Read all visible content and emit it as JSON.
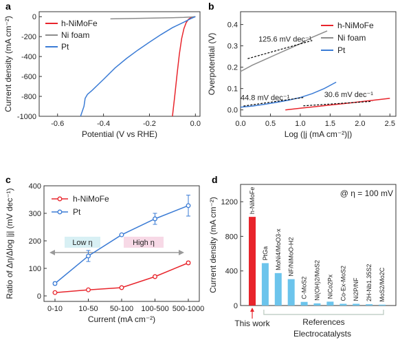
{
  "colors": {
    "red": "#e8242b",
    "gray": "#8c8c8c",
    "blue": "#3a7bd5",
    "lightblue": "#6cc4ec",
    "refgray": "#9aa7a0",
    "refline": "#b8c8bd",
    "lowbox": "#d8f0f4",
    "highbox": "#f7d9e6"
  },
  "chart_data": [
    {
      "panel": "a",
      "type": "line",
      "xlabel": "Potential (V vs RHE)",
      "ylabel": "Current density (mA cm⁻²)",
      "xlim": [
        -0.68,
        0.02
      ],
      "ylim": [
        -1000,
        50
      ],
      "xticks": [
        "-0.6",
        "-0.4",
        "-0.2",
        "0.0"
      ],
      "yticks": [
        "0",
        "-200",
        "-400",
        "-600",
        "-800",
        "-1000"
      ],
      "legend_position": "top-left",
      "series": [
        {
          "name": "h-NiMoFe",
          "color": "red",
          "x": [
            0.0,
            -0.01,
            -0.02,
            -0.03,
            -0.04,
            -0.05,
            -0.06,
            -0.07,
            -0.08,
            -0.09,
            -0.1
          ],
          "y": [
            0,
            -3,
            -10,
            -25,
            -60,
            -120,
            -220,
            -380,
            -580,
            -800,
            -1000
          ]
        },
        {
          "name": "Ni foam",
          "color": "gray",
          "x": [
            -0.37,
            -0.3,
            -0.2,
            -0.1,
            -0.05,
            -0.02,
            0.0
          ],
          "y": [
            -22,
            -19,
            -15,
            -10,
            -7,
            -4,
            0
          ]
        },
        {
          "name": "Pt",
          "color": "blue",
          "x": [
            0.0,
            -0.02,
            -0.05,
            -0.1,
            -0.15,
            -0.2,
            -0.25,
            -0.3,
            -0.35,
            -0.4,
            -0.45,
            -0.47,
            -0.48,
            -0.485,
            -0.5
          ],
          "y": [
            0,
            -20,
            -55,
            -110,
            -180,
            -255,
            -335,
            -420,
            -515,
            -630,
            -740,
            -780,
            -820,
            -900,
            -1000
          ]
        }
      ]
    },
    {
      "panel": "b",
      "type": "line",
      "xlabel": "Log (|j (mA cm⁻²)|)",
      "ylabel": "Overpotential (V)",
      "xlim": [
        0.0,
        2.6
      ],
      "ylim": [
        -0.03,
        0.46
      ],
      "xticks": [
        "0.0",
        "0.5",
        "1.0",
        "1.5",
        "2.0",
        "2.5"
      ],
      "yticks": [
        "0.0",
        "0.1",
        "0.2",
        "0.3",
        "0.4"
      ],
      "legend_position": "top-right",
      "annotations": [
        "125.6 mV dec⁻¹",
        "44.8 mV dec⁻¹",
        "30.6 mV dec⁻¹"
      ],
      "series": [
        {
          "name": "h-NiMoFe",
          "color": "red",
          "x": [
            0.75,
            1.0,
            1.25,
            1.5,
            1.75,
            2.0,
            2.25,
            2.5
          ],
          "y": [
            0.0,
            0.008,
            0.015,
            0.023,
            0.03,
            0.038,
            0.046,
            0.054
          ]
        },
        {
          "name": "Ni foam",
          "color": "gray",
          "x": [
            0.0,
            0.2,
            0.4,
            0.6,
            0.8,
            1.0,
            1.2,
            1.45
          ],
          "y": [
            0.18,
            0.21,
            0.235,
            0.26,
            0.285,
            0.31,
            0.34,
            0.37
          ]
        },
        {
          "name": "Pt",
          "color": "blue",
          "x": [
            0.0,
            0.2,
            0.4,
            0.6,
            0.8,
            1.0,
            1.2,
            1.4,
            1.6
          ],
          "y": [
            0.013,
            0.018,
            0.026,
            0.035,
            0.045,
            0.058,
            0.076,
            0.1,
            0.13
          ]
        }
      ]
    },
    {
      "panel": "c",
      "type": "line",
      "xlabel": "Current (mA cm⁻²)",
      "ylabel": "Ratio of Δη/Δlog |j| (mV dec⁻¹)",
      "categories": [
        "0-10",
        "10-50",
        "50-100",
        "100-500",
        "500-1000"
      ],
      "ylim": [
        -20,
        400
      ],
      "yticks": [
        "0",
        "100",
        "200",
        "300",
        "400"
      ],
      "legend_position": "top-left",
      "annotations": [
        "Low η",
        "High η"
      ],
      "series": [
        {
          "name": "h-NiMoFe",
          "color": "red",
          "values": [
            12,
            22,
            30,
            70,
            120
          ],
          "errors": [
            3,
            3,
            3,
            4,
            5
          ]
        },
        {
          "name": "Pt",
          "color": "blue",
          "values": [
            45,
            145,
            222,
            280,
            328
          ],
          "errors": [
            5,
            20,
            3,
            20,
            38
          ]
        }
      ]
    },
    {
      "panel": "d",
      "type": "bar",
      "xlabel": "Electrocatalysts",
      "ylabel": "Current density (mA cm⁻²)",
      "ylim": [
        0,
        1400
      ],
      "yticks": [
        "0",
        "400",
        "800",
        "1200"
      ],
      "condition": "@ η = 100 mV",
      "categories": [
        "h-NiMoFe",
        "PtGa",
        "MoNi4/MoO3-x",
        "NF/NiMoO-H2",
        "C-MoS2",
        "Ni(OH)2/MoS2",
        "NiCo2Px",
        "Co-Ex-MoS2",
        "Ni2P/NF",
        "2H-Nb1.35S2",
        "MoS2/Mo2C"
      ],
      "values": [
        1025,
        490,
        375,
        305,
        42,
        25,
        45,
        20,
        20,
        15,
        10
      ],
      "highlight_label": "This work",
      "group_label": "References"
    }
  ]
}
